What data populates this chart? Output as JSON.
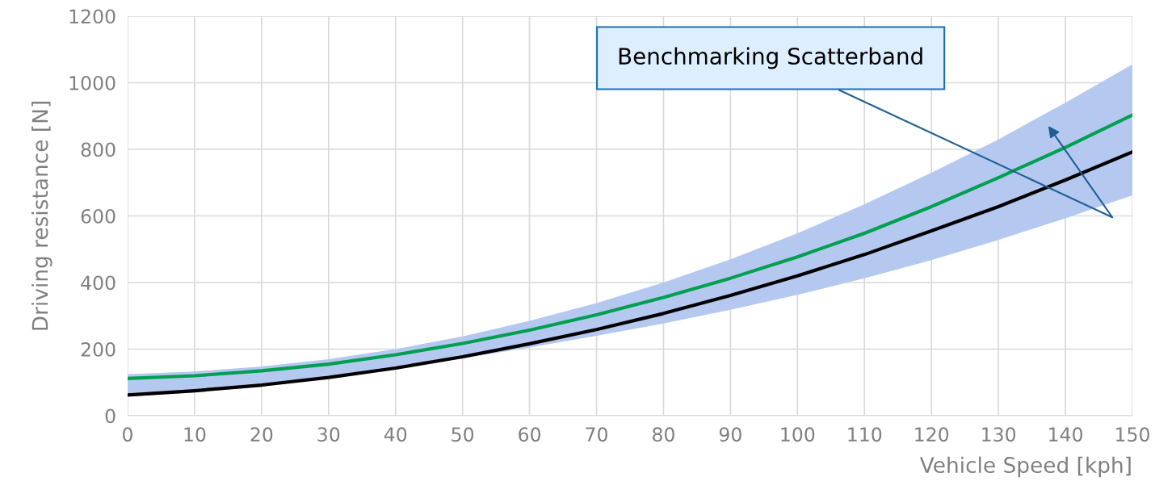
{
  "chart_data": {
    "type": "line",
    "xlabel": "Vehicle Speed [kph]",
    "ylabel": "Driving resistance [N]",
    "x": [
      0,
      10,
      20,
      30,
      40,
      50,
      60,
      70,
      80,
      90,
      100,
      110,
      120,
      130,
      140,
      150
    ],
    "series": [
      {
        "color": "#00a050",
        "values": [
          112,
          120,
          135,
          155,
          183,
          217,
          257,
          303,
          355,
          413,
          477,
          548,
          628,
          715,
          806,
          903
        ],
        "lower": [
          58,
          70,
          88,
          112,
          140,
          172,
          205,
          240,
          277,
          318,
          363,
          413,
          467,
          528,
          593,
          662
        ],
        "upper": [
          125,
          133,
          148,
          170,
          200,
          238,
          285,
          338,
          400,
          470,
          548,
          635,
          730,
          830,
          940,
          1055
        ]
      },
      {
        "color": "#000000",
        "values": [
          62,
          75,
          92,
          115,
          143,
          177,
          216,
          259,
          307,
          361,
          420,
          484,
          555,
          628,
          708,
          792
        ]
      }
    ],
    "annotations": [
      "Benchmarking Scatterband"
    ],
    "xlim": [
      0,
      150
    ],
    "xticks": [
      0,
      10,
      20,
      30,
      40,
      50,
      60,
      70,
      80,
      90,
      100,
      110,
      120,
      130,
      140,
      150
    ],
    "ylim": [
      0,
      1200
    ],
    "yticks": [
      0,
      200,
      400,
      600,
      800,
      1000,
      1200
    ],
    "grid": true,
    "marker": "none",
    "line_style": "solid"
  }
}
